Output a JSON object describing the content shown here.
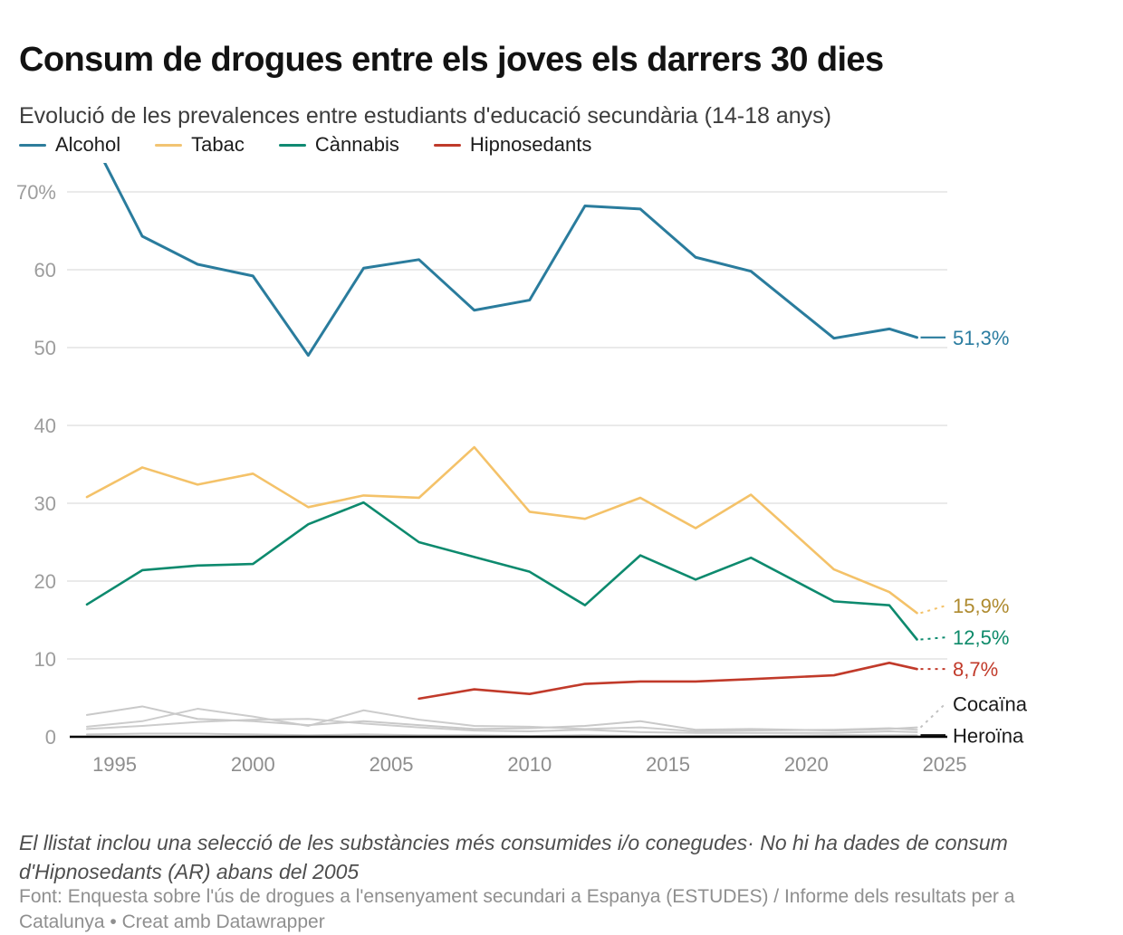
{
  "header": {
    "title": "Consum de drogues entre els joves els darrers 30 dies",
    "subtitle": "Evolució de les prevalences entre estudiants d'educació secundària (14-18 anys)"
  },
  "legend": {
    "items": [
      {
        "label": "Alcohol",
        "color": "#2e7d9c"
      },
      {
        "label": "Tabac",
        "color": "#f2c472"
      },
      {
        "label": "Cànnabis",
        "color": "#108a72"
      },
      {
        "label": "Hipnosedants",
        "color": "#bf3a2b"
      }
    ]
  },
  "chart_data": {
    "type": "line",
    "title": "Consum de drogues entre els joves els darrers 30 dies",
    "subtitle": "Evolució de les prevalences entre estudiants d'educació secundària (14-18 anys)",
    "x": [
      1994,
      1996,
      1998,
      2000,
      2002,
      2004,
      2006,
      2008,
      2010,
      2012,
      2014,
      2016,
      2018,
      2021,
      2023,
      2024
    ],
    "series": [
      {
        "id": "gray-a",
        "name": "",
        "color": "#cccccc",
        "width": 2,
        "values": [
          1.3,
          2.0,
          3.6,
          2.6,
          1.4,
          3.4,
          2.2,
          1.4,
          1.3,
          1.0,
          1.2,
          0.7,
          0.8,
          0.9,
          1.1,
          0.9
        ]
      },
      {
        "id": "gray-b",
        "name": "",
        "color": "#cccccc",
        "width": 2,
        "values": [
          1.0,
          1.4,
          1.9,
          2.2,
          2.3,
          1.7,
          1.2,
          0.8,
          0.7,
          0.9,
          0.6,
          0.5,
          0.5,
          0.5,
          0.7,
          0.6
        ]
      },
      {
        "id": "cocaina",
        "name": "Cocaïna",
        "color": "#c9c9c9",
        "width": 2,
        "end_label": "Cocaïna",
        "label_color": "#1a1a1a",
        "connector": "dashed",
        "connector_color": "#c2c2c2",
        "values": [
          2.8,
          3.9,
          2.3,
          2.0,
          1.5,
          2.0,
          1.5,
          1.0,
          1.1,
          1.4,
          2.0,
          0.9,
          1.0,
          0.8,
          1.0,
          1.2
        ]
      },
      {
        "id": "heroina",
        "name": "Heroïna",
        "color": "#c9c9c9",
        "width": 2,
        "end_label": "Heroïna",
        "label_color": "#1a1a1a",
        "connector": "solid",
        "connector_color": "#111111",
        "values": [
          0.3,
          0.4,
          0.4,
          0.3,
          0.2,
          0.3,
          0.2,
          0.2,
          0.1,
          0.2,
          0.1,
          0.1,
          0.1,
          0.2,
          0.2,
          0.2
        ]
      },
      {
        "id": "tabac",
        "name": "Tabac",
        "color": "#f4c269",
        "width": 2.6,
        "end_label": "15,9%",
        "label_color": "#ae8a2e",
        "connector": "dashed",
        "connector_color": "#f4c269",
        "values": [
          30.8,
          34.6,
          32.4,
          33.8,
          29.5,
          31.0,
          30.7,
          37.2,
          28.9,
          28.0,
          30.7,
          26.8,
          31.1,
          21.5,
          18.6,
          15.9
        ]
      },
      {
        "id": "cannabis",
        "name": "Cànnabis",
        "color": "#0d8a6e",
        "width": 2.6,
        "end_label": "12,5%",
        "label_color": "#0e8a6a",
        "connector": "dashed",
        "connector_color": "#0d8a6e",
        "values": [
          17.0,
          21.4,
          22.0,
          22.2,
          27.3,
          30.1,
          25.0,
          23.1,
          21.2,
          16.9,
          23.3,
          20.2,
          23.0,
          17.4,
          16.9,
          12.5
        ]
      },
      {
        "id": "hipnosedants",
        "name": "Hipnosedants",
        "color": "#c13a2a",
        "width": 2.6,
        "end_label": "8,7%",
        "label_color": "#c13a2a",
        "connector": "dashed",
        "connector_color": "#c13a2a",
        "values": [
          null,
          null,
          null,
          null,
          null,
          null,
          4.9,
          6.1,
          5.5,
          6.8,
          7.1,
          7.1,
          7.4,
          7.9,
          9.5,
          8.7
        ]
      },
      {
        "id": "alcohol",
        "name": "Alcohol",
        "color": "#2a7c9d",
        "width": 3,
        "end_label": "51,3%",
        "label_color": "#2a7ca0",
        "connector": "solid",
        "connector_color": "#2a7c9d",
        "values": [
          78.2,
          64.3,
          60.7,
          59.2,
          49.0,
          60.2,
          61.3,
          54.8,
          56.1,
          68.2,
          67.8,
          61.6,
          59.8,
          51.2,
          52.4,
          51.3
        ]
      }
    ],
    "x_axis": {
      "ticks": [
        1995,
        2000,
        2005,
        2010,
        2015,
        2020,
        2025
      ],
      "xlim": [
        1994,
        2025
      ]
    },
    "y_axis": {
      "ticks": [
        {
          "value": 0,
          "label": "0"
        },
        {
          "value": 10,
          "label": "10"
        },
        {
          "value": 20,
          "label": "20"
        },
        {
          "value": 30,
          "label": "30"
        },
        {
          "value": 40,
          "label": "40"
        },
        {
          "value": 50,
          "label": "50"
        },
        {
          "value": 60,
          "label": "60"
        },
        {
          "value": 70,
          "label": "70%"
        }
      ],
      "ylim": [
        0,
        78
      ]
    },
    "grid": "horizontal",
    "legend_position": "top"
  },
  "footnote": "El llistat inclou una selecció de les substàncies més consumides i/o conegudes· No hi ha dades de consum d'Hipnosedants (AR) abans del 2005",
  "source": "Font: Enquesta sobre l'ús de drogues a l'ensenyament secundari a Espanya (ESTUDES) / Informe dels resultats per a Catalunya • Creat amb Datawrapper"
}
